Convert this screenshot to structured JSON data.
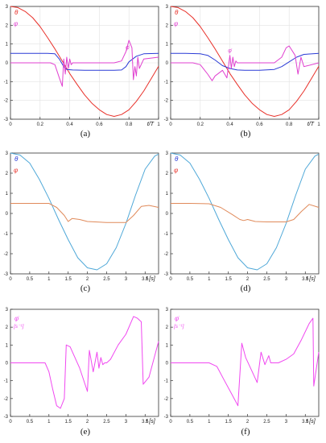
{
  "colors": {
    "theta_red": "#e8312a",
    "phi_magenta": "#e040d0",
    "phi_blue": "#2a3bd6",
    "theta_cyan": "#4fa8d8",
    "phi_orange": "#e08a5a",
    "phidot_magenta": "#f048f0"
  },
  "chart_data": [
    {
      "id": "a",
      "type": "line",
      "caption": "(a)",
      "xlabel": "t/T",
      "ylabel_top": "θ",
      "ylabel_bottom": "φ",
      "xlim": [
        0,
        1
      ],
      "ylim": [
        -3,
        3
      ],
      "xticks": [
        0,
        0.2,
        0.4,
        0.6,
        0.8,
        1
      ],
      "xtick_labels": [
        "0",
        "0.2",
        "0.4",
        "0.6",
        "0.8",
        "1"
      ],
      "yticks": [
        -3,
        -2,
        -1,
        0,
        1,
        2,
        3
      ],
      "ytick_labels": [
        "-3",
        "-2",
        "-1",
        "0",
        "1",
        "2",
        "3"
      ],
      "grid": true,
      "annotations": [
        {
          "text": "φ̇",
          "x": 0.79,
          "y": 0.72
        }
      ],
      "series": [
        {
          "key": "theta",
          "color": "#e8312a",
          "x": [
            0,
            0.05,
            0.1,
            0.15,
            0.2,
            0.25,
            0.3,
            0.35,
            0.4,
            0.45,
            0.5,
            0.55,
            0.6,
            0.65,
            0.7,
            0.75,
            0.8,
            0.85,
            0.9,
            0.95,
            1
          ],
          "y": [
            3.0,
            2.94,
            2.73,
            2.4,
            1.93,
            1.35,
            0.74,
            0.09,
            -0.57,
            -1.15,
            -1.7,
            -2.15,
            -2.5,
            -2.75,
            -2.85,
            -2.75,
            -2.5,
            -2.05,
            -1.5,
            -0.85,
            -0.18
          ]
        },
        {
          "key": "phi_blue",
          "color": "#2a3bd6",
          "x": [
            0,
            0.1,
            0.2,
            0.25,
            0.3,
            0.33,
            0.36,
            0.38,
            0.42,
            0.5,
            0.6,
            0.7,
            0.75,
            0.78,
            0.8,
            0.85,
            0.9,
            1
          ],
          "y": [
            0.5,
            0.5,
            0.5,
            0.5,
            0.48,
            0.2,
            -0.2,
            -0.35,
            -0.38,
            -0.4,
            -0.4,
            -0.4,
            -0.38,
            -0.2,
            0.05,
            0.35,
            0.48,
            0.5
          ]
        },
        {
          "key": "phidot",
          "color": "#e040d0",
          "x": [
            0,
            0.1,
            0.2,
            0.27,
            0.3,
            0.33,
            0.35,
            0.36,
            0.37,
            0.38,
            0.39,
            0.4,
            0.41,
            0.42,
            0.5,
            0.6,
            0.7,
            0.75,
            0.78,
            0.8,
            0.82,
            0.83,
            0.84,
            0.85,
            0.86,
            0.87,
            0.9,
            1
          ],
          "y": [
            0.0,
            0.0,
            0.0,
            0.0,
            -0.1,
            -0.8,
            -1.25,
            0.2,
            -0.6,
            0.3,
            -0.3,
            0.2,
            -0.1,
            0.0,
            0.0,
            0.0,
            0.0,
            0.1,
            0.6,
            1.2,
            0.8,
            -0.9,
            -0.2,
            -0.7,
            0.3,
            -0.3,
            0.2,
            0.3
          ]
        }
      ]
    },
    {
      "id": "b",
      "type": "line",
      "caption": "(b)",
      "xlabel": "t/T",
      "ylabel_top": "θ",
      "ylabel_bottom": "φ",
      "xlim": [
        0,
        1
      ],
      "ylim": [
        -3,
        3
      ],
      "xticks": [
        0,
        0.2,
        0.4,
        0.6,
        0.8,
        1
      ],
      "xtick_labels": [
        "0",
        "0.2",
        "0.4",
        "0.6",
        "0.8",
        "1"
      ],
      "yticks": [
        -3,
        -2,
        -1,
        0,
        1,
        2,
        3
      ],
      "ytick_labels": [
        "-3",
        "-2",
        "-1",
        "0",
        "1",
        "2",
        "3"
      ],
      "grid": true,
      "annotations": [
        {
          "text": "φ̇",
          "x": 0.4,
          "y": 0.55
        }
      ],
      "series": [
        {
          "key": "theta",
          "color": "#e8312a",
          "x": [
            0,
            0.05,
            0.1,
            0.15,
            0.2,
            0.25,
            0.3,
            0.35,
            0.4,
            0.45,
            0.5,
            0.55,
            0.6,
            0.65,
            0.7,
            0.75,
            0.8,
            0.85,
            0.9,
            0.95,
            1
          ],
          "y": [
            3.0,
            2.94,
            2.73,
            2.4,
            1.93,
            1.35,
            0.74,
            0.09,
            -0.57,
            -1.15,
            -1.7,
            -2.15,
            -2.5,
            -2.75,
            -2.85,
            -2.75,
            -2.5,
            -2.05,
            -1.5,
            -0.85,
            -0.18
          ]
        },
        {
          "key": "phi_blue",
          "color": "#2a3bd6",
          "x": [
            0,
            0.1,
            0.2,
            0.25,
            0.3,
            0.35,
            0.4,
            0.45,
            0.5,
            0.6,
            0.7,
            0.75,
            0.8,
            0.85,
            0.9,
            1
          ],
          "y": [
            0.5,
            0.5,
            0.48,
            0.4,
            0.15,
            -0.15,
            -0.3,
            -0.38,
            -0.4,
            -0.4,
            -0.35,
            -0.2,
            0.05,
            0.3,
            0.45,
            0.5
          ]
        },
        {
          "key": "phidot",
          "color": "#e040d0",
          "x": [
            0,
            0.1,
            0.15,
            0.2,
            0.25,
            0.28,
            0.3,
            0.35,
            0.38,
            0.4,
            0.41,
            0.42,
            0.43,
            0.44,
            0.45,
            0.5,
            0.6,
            0.7,
            0.75,
            0.78,
            0.8,
            0.84,
            0.86,
            0.88,
            0.9,
            1
          ],
          "y": [
            0.0,
            0.0,
            0.0,
            -0.1,
            -0.6,
            -0.95,
            -0.7,
            -0.4,
            -0.8,
            0.4,
            -0.3,
            0.3,
            -0.2,
            0.1,
            0.0,
            0.0,
            0.0,
            0.0,
            0.3,
            0.8,
            0.9,
            0.4,
            -0.6,
            0.3,
            -0.2,
            0.0
          ]
        }
      ]
    },
    {
      "id": "c",
      "type": "line",
      "caption": "(c)",
      "xlabel": "t [s]",
      "ylabel_top": "θ",
      "ylabel_bottom": "φ",
      "xlim": [
        0,
        3.85
      ],
      "ylim": [
        -3,
        3
      ],
      "xticks": [
        0,
        0.5,
        1,
        1.5,
        2,
        2.5,
        3,
        3.5
      ],
      "xtick_labels": [
        "0",
        "0.5",
        "1",
        "1.5",
        "2",
        "2.5",
        "3",
        "3.5"
      ],
      "yticks": [
        -3,
        -2,
        -1,
        0,
        1,
        2,
        3
      ],
      "ytick_labels": [
        "-3",
        "-2",
        "-1",
        "0",
        "1",
        "2",
        "3"
      ],
      "grid": false,
      "annotations": [],
      "series": [
        {
          "key": "theta",
          "color": "#4fa8d8",
          "x": [
            0,
            0.25,
            0.5,
            0.75,
            1.0,
            1.25,
            1.5,
            1.75,
            2.0,
            2.25,
            2.5,
            2.75,
            3.0,
            3.25,
            3.5,
            3.75,
            3.85
          ],
          "y": [
            3.0,
            2.9,
            2.5,
            1.7,
            0.75,
            -0.3,
            -1.3,
            -2.2,
            -2.7,
            -2.8,
            -2.5,
            -1.7,
            -0.5,
            0.9,
            2.2,
            2.85,
            2.95
          ]
        },
        {
          "key": "phi",
          "color": "#e08a5a",
          "x": [
            0,
            0.5,
            1.0,
            1.2,
            1.4,
            1.5,
            1.6,
            1.8,
            2.0,
            2.5,
            3.0,
            3.2,
            3.4,
            3.6,
            3.85
          ],
          "y": [
            0.5,
            0.5,
            0.5,
            0.3,
            -0.1,
            -0.4,
            -0.25,
            -0.3,
            -0.4,
            -0.45,
            -0.45,
            -0.1,
            0.35,
            0.4,
            0.3
          ]
        }
      ]
    },
    {
      "id": "d",
      "type": "line",
      "caption": "(d)",
      "xlabel": "t [s]",
      "ylabel_top": "θ",
      "ylabel_bottom": "φ",
      "xlim": [
        0,
        3.85
      ],
      "ylim": [
        -3,
        3
      ],
      "xticks": [
        0,
        0.5,
        1,
        1.5,
        2,
        2.5,
        3,
        3.5
      ],
      "xtick_labels": [
        "0",
        "0.5",
        "1",
        "1.5",
        "2",
        "2.5",
        "3",
        "3.5"
      ],
      "yticks": [
        -3,
        -2,
        -1,
        0,
        1,
        2,
        3
      ],
      "ytick_labels": [
        "-3",
        "-2",
        "-1",
        "0",
        "1",
        "2",
        "3"
      ],
      "grid": false,
      "annotations": [],
      "series": [
        {
          "key": "theta",
          "color": "#4fa8d8",
          "x": [
            0,
            0.25,
            0.5,
            0.75,
            1.0,
            1.25,
            1.5,
            1.75,
            2.0,
            2.25,
            2.5,
            2.75,
            3.0,
            3.25,
            3.5,
            3.75,
            3.85
          ],
          "y": [
            3.0,
            2.9,
            2.5,
            1.7,
            0.75,
            -0.3,
            -1.3,
            -2.2,
            -2.7,
            -2.8,
            -2.5,
            -1.7,
            -0.5,
            0.9,
            2.2,
            2.85,
            2.95
          ]
        },
        {
          "key": "phi",
          "color": "#e08a5a",
          "x": [
            0,
            0.5,
            1.0,
            1.3,
            1.6,
            1.8,
            1.9,
            2.0,
            2.2,
            2.5,
            3.0,
            3.2,
            3.4,
            3.6,
            3.85
          ],
          "y": [
            0.5,
            0.5,
            0.48,
            0.3,
            -0.05,
            -0.3,
            -0.35,
            -0.3,
            -0.4,
            -0.42,
            -0.42,
            -0.3,
            0.1,
            0.45,
            0.3
          ]
        }
      ]
    },
    {
      "id": "e",
      "type": "line",
      "caption": "(e)",
      "xlabel": "t [s]",
      "ylabel_top": "φ̇",
      "ylabel_bottom": "[s⁻¹]",
      "xlim": [
        0,
        3.85
      ],
      "ylim": [
        -3,
        3
      ],
      "xticks": [
        0,
        0.5,
        1,
        1.5,
        2,
        2.5,
        3,
        3.5
      ],
      "xtick_labels": [
        "0",
        "0.5",
        "1",
        "1.5",
        "2",
        "2.5",
        "3",
        "3.5"
      ],
      "yticks": [
        -3,
        -2,
        -1,
        0,
        1,
        2,
        3
      ],
      "ytick_labels": [
        "-3",
        "-2",
        "-1",
        "0",
        "1",
        "2",
        "3"
      ],
      "grid": false,
      "annotations": [],
      "series": [
        {
          "key": "phidot",
          "color": "#f048f0",
          "x": [
            0,
            0.5,
            0.9,
            1.0,
            1.1,
            1.2,
            1.3,
            1.4,
            1.45,
            1.55,
            1.8,
            2.0,
            2.05,
            2.15,
            2.25,
            2.3,
            2.35,
            2.4,
            2.45,
            2.5,
            2.6,
            2.8,
            3.0,
            3.2,
            3.3,
            3.4,
            3.45,
            3.6,
            3.85
          ],
          "y": [
            0.0,
            0.0,
            0.0,
            -0.5,
            -1.5,
            -2.4,
            -2.55,
            -2.0,
            1.0,
            0.9,
            -0.3,
            -1.6,
            0.7,
            -0.5,
            0.6,
            -0.3,
            0.3,
            -0.1,
            0.0,
            0.0,
            0.2,
            1.0,
            1.6,
            2.6,
            2.5,
            2.3,
            -1.2,
            -0.8,
            1.2
          ]
        }
      ]
    },
    {
      "id": "f",
      "type": "line",
      "caption": "(f)",
      "xlabel": "t [s]",
      "ylabel_top": "φ̇",
      "ylabel_bottom": "[s⁻¹]",
      "xlim": [
        0,
        3.85
      ],
      "ylim": [
        -3,
        3
      ],
      "xticks": [
        0,
        0.5,
        1,
        1.5,
        2,
        2.5,
        3,
        3.5
      ],
      "xtick_labels": [
        "0",
        "0.5",
        "1",
        "1.5",
        "2",
        "2.5",
        "3",
        "3.5"
      ],
      "yticks": [
        -3,
        -2,
        -1,
        0,
        1,
        2,
        3
      ],
      "ytick_labels": [
        "-3",
        "-2",
        "-1",
        "0",
        "1",
        "2",
        "3"
      ],
      "grid": false,
      "annotations": [],
      "series": [
        {
          "key": "phidot",
          "color": "#f048f0",
          "x": [
            0,
            0.5,
            1.0,
            1.2,
            1.4,
            1.6,
            1.75,
            1.85,
            1.95,
            2.1,
            2.25,
            2.35,
            2.45,
            2.55,
            2.6,
            2.7,
            2.8,
            3.0,
            3.2,
            3.4,
            3.6,
            3.7,
            3.72,
            3.85
          ],
          "y": [
            0.0,
            0.0,
            0.0,
            -0.2,
            -1.0,
            -1.8,
            -2.4,
            1.1,
            0.3,
            -0.4,
            -1.1,
            0.6,
            -0.1,
            0.4,
            0.0,
            0.0,
            0.0,
            0.2,
            0.5,
            1.3,
            2.2,
            2.5,
            -1.3,
            0.6
          ]
        }
      ]
    }
  ]
}
